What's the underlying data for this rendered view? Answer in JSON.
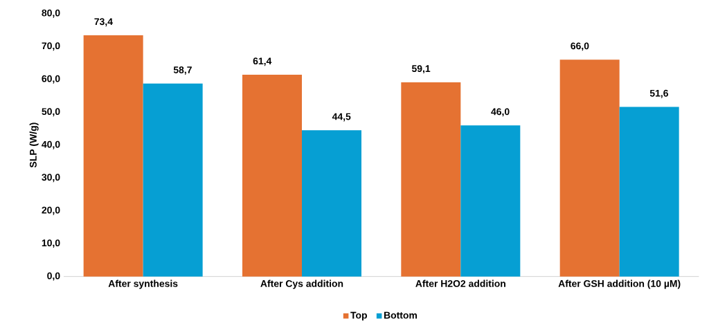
{
  "chart_data": {
    "type": "bar",
    "ylabel": "SLP (W/g)",
    "categories": [
      "After synthesis",
      "After Cys addition",
      "After H2O2 addition",
      "After GSH addition (10 µM)"
    ],
    "series": [
      {
        "name": "Top",
        "color": "#e57232",
        "values": [
          73.4,
          61.4,
          59.1,
          66.0
        ],
        "value_labels": [
          "73,4",
          "61,4",
          "59,1",
          "66,0"
        ]
      },
      {
        "name": "Bottom",
        "color": "#069fd3",
        "values": [
          58.7,
          44.5,
          46.0,
          51.6
        ],
        "value_labels": [
          "58,7",
          "44,5",
          "46,0",
          "51,6"
        ]
      }
    ],
    "ylim": [
      0,
      80
    ],
    "yticks": [
      {
        "value": 0,
        "label": "0,0"
      },
      {
        "value": 10,
        "label": "10,0"
      },
      {
        "value": 20,
        "label": "20,0"
      },
      {
        "value": 30,
        "label": "30,0"
      },
      {
        "value": 40,
        "label": "40,0"
      },
      {
        "value": 50,
        "label": "50,0"
      },
      {
        "value": 60,
        "label": "60,0"
      },
      {
        "value": 70,
        "label": "70,0"
      },
      {
        "value": 80,
        "label": "80,0"
      }
    ],
    "grid": false,
    "legend": "bottom"
  }
}
